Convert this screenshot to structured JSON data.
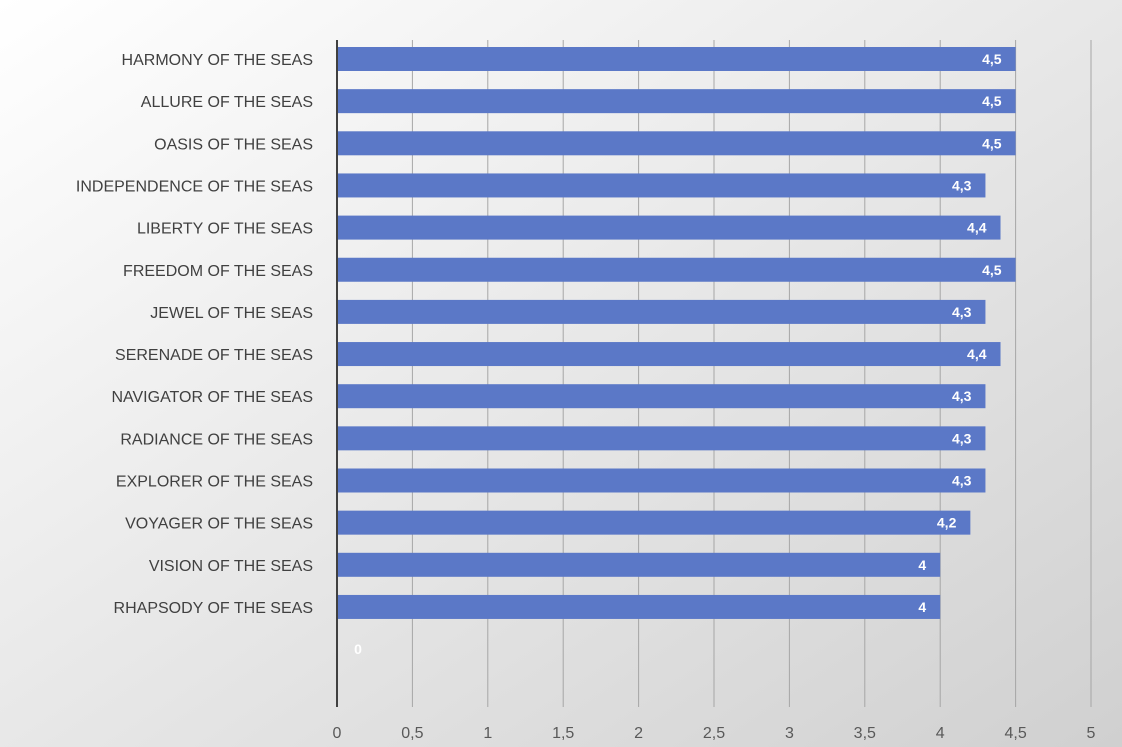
{
  "colors": {
    "bar": "#5b78c7",
    "bar_label": "#ffffff",
    "gridline": "#a6a6a6",
    "axis_line": "#404040",
    "tick_label": "#595959",
    "category_label": "#404040",
    "background_start": "#ffffff",
    "background_end": "#d0d0d0"
  },
  "chart_data": {
    "type": "bar",
    "orientation": "horizontal",
    "title": "",
    "xlabel": "",
    "ylabel": "",
    "categories": [
      "HARMONY OF THE SEAS",
      "ALLURE OF THE SEAS",
      "OASIS OF THE SEAS",
      "INDEPENDENCE OF THE SEAS",
      "LIBERTY OF THE SEAS",
      "FREEDOM OF THE SEAS",
      "JEWEL OF THE SEAS",
      "SERENADE OF THE SEAS",
      "NAVIGATOR OF THE SEAS",
      "RADIANCE OF THE SEAS",
      "EXPLORER OF THE SEAS",
      "VOYAGER OF THE SEAS",
      "VISION OF THE SEAS",
      "RHAPSODY OF THE SEAS",
      ""
    ],
    "values": [
      4.5,
      4.5,
      4.5,
      4.3,
      4.4,
      4.5,
      4.3,
      4.4,
      4.3,
      4.3,
      4.3,
      4.2,
      4,
      4,
      0
    ],
    "value_labels": [
      "4,5",
      "4,5",
      "4,5",
      "4,3",
      "4,4",
      "4,5",
      "4,3",
      "4,4",
      "4,3",
      "4,3",
      "4,3",
      "4,2",
      "4",
      "4",
      "0"
    ],
    "xlim": [
      0,
      5
    ],
    "xticks": [
      "0",
      "0,5",
      "1",
      "1,5",
      "2",
      "2,5",
      "3",
      "3,5",
      "4",
      "4,5",
      "5"
    ],
    "grid": true,
    "legend": "none"
  }
}
